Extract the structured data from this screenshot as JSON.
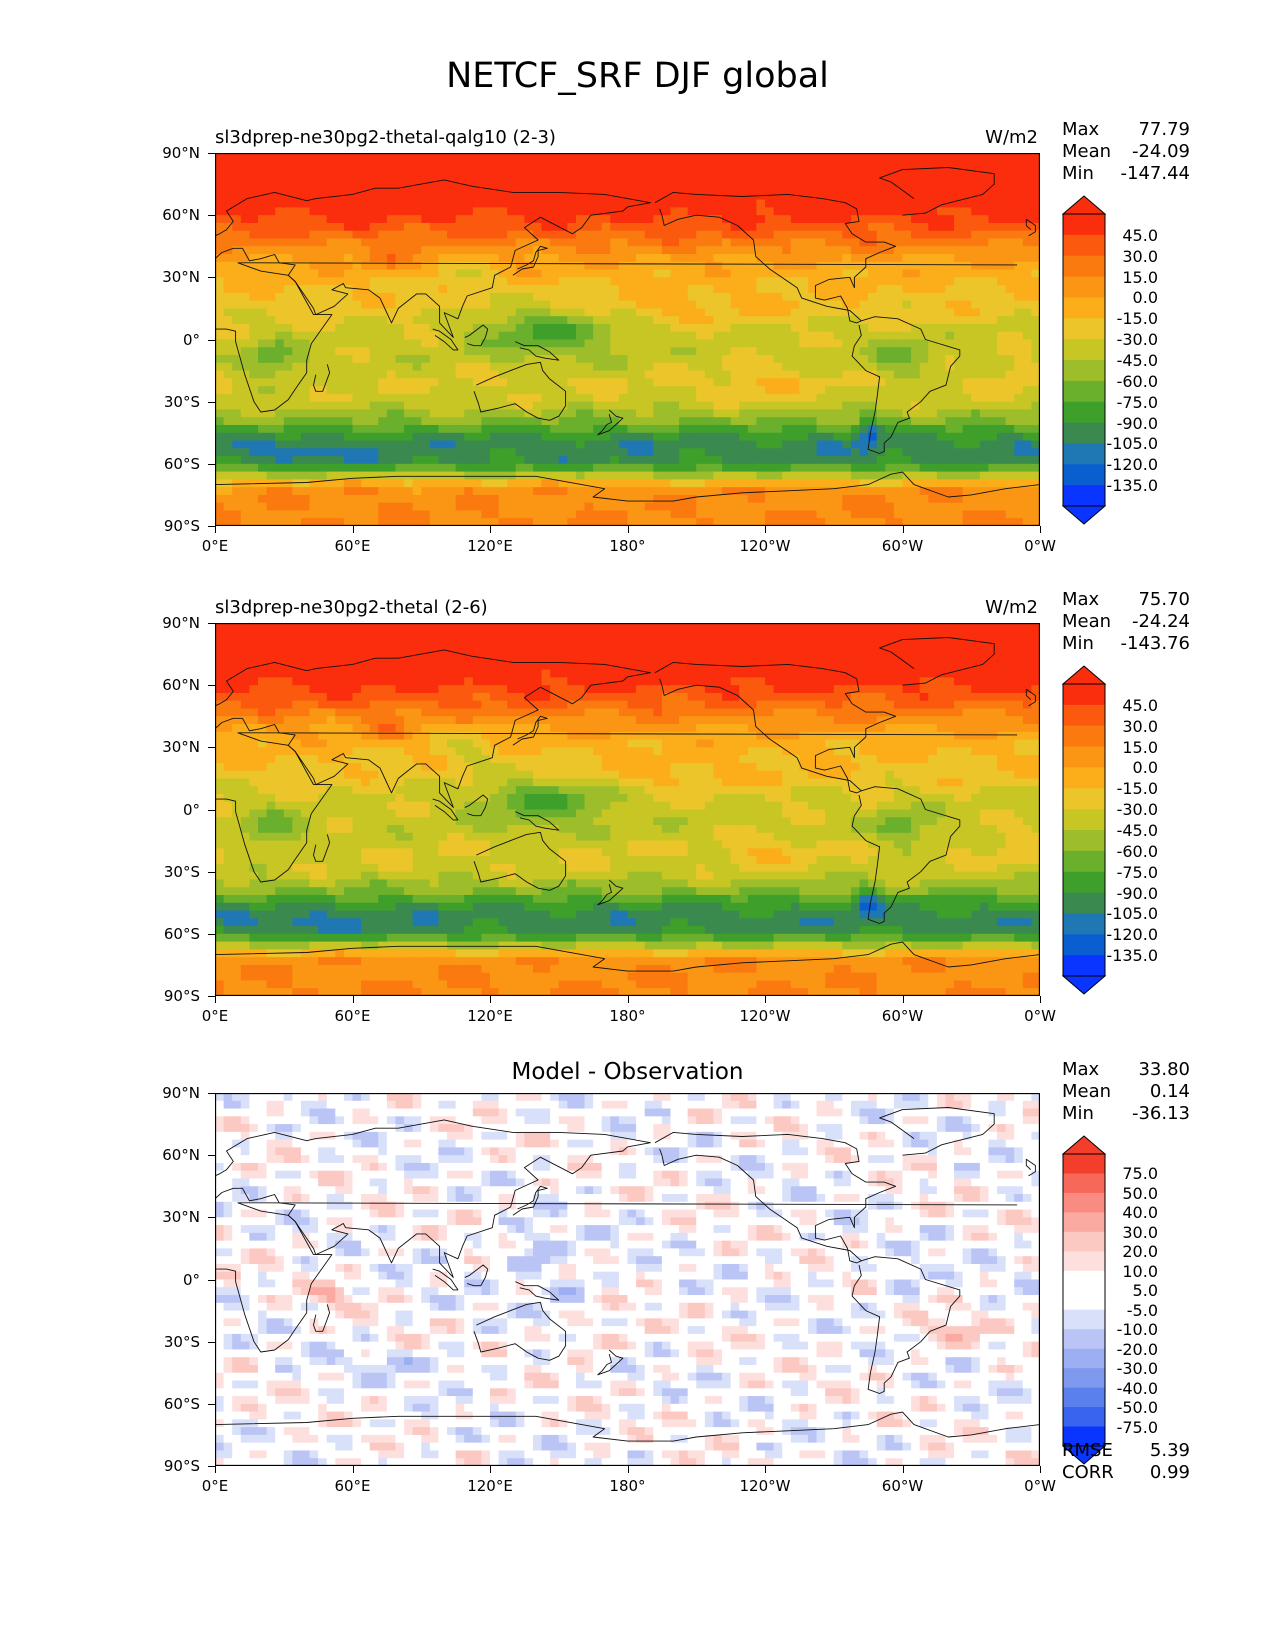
{
  "title": "NETCF_SRF DJF global",
  "colors": {
    "field": [
      "#0a34ff",
      "#0a5fd0",
      "#1f78b4",
      "#3a8a50",
      "#3ea02a",
      "#6ab02c",
      "#9dbe2a",
      "#c8c624",
      "#ecc52a",
      "#fcad1a",
      "#fb9614",
      "#fb7a10",
      "#fb5a0e",
      "#fa2d0c"
    ],
    "diff": [
      "#0a34ff",
      "#3864ee",
      "#5a80ee",
      "#7f99ef",
      "#9daef2",
      "#bac5f5",
      "#d9e0fa",
      "#ffffff",
      "#ffffff",
      "#fde0de",
      "#fcc8c2",
      "#fbaaa2",
      "#f98b80",
      "#f7685a",
      "#f23e2a"
    ]
  },
  "chart_data": [
    {
      "type": "heatmap",
      "panel": "test",
      "title_left": "sl3dprep-ne30pg2-thetal-qalg10 (2-3)",
      "units": "W/m2",
      "stats": {
        "max_label": "Max",
        "max": "77.79",
        "mean_label": "Mean",
        "mean": "-24.09",
        "min_label": "Min",
        "min": "-147.44"
      },
      "x_ticks": [
        "0°E",
        "60°E",
        "120°E",
        "180°",
        "120°W",
        "60°W",
        "0°W"
      ],
      "y_ticks": [
        "90°N",
        "60°N",
        "30°N",
        "0°",
        "30°S",
        "60°S",
        "90°S"
      ],
      "colorbar_ticks": [
        "45.0",
        "30.0",
        "15.0",
        "0.0",
        "-15.0",
        "-30.0",
        "-45.0",
        "-60.0",
        "-75.0",
        "-90.0",
        "-105.0",
        "-120.0",
        "-135.0"
      ],
      "colorbar_extend": "both"
    },
    {
      "type": "heatmap",
      "panel": "reference",
      "title_left": "sl3dprep-ne30pg2-thetal (2-6)",
      "units": "W/m2",
      "stats": {
        "max_label": "Max",
        "max": "75.70",
        "mean_label": "Mean",
        "mean": "-24.24",
        "min_label": "Min",
        "min": "-143.76"
      },
      "x_ticks": [
        "0°E",
        "60°E",
        "120°E",
        "180°",
        "120°W",
        "60°W",
        "0°W"
      ],
      "y_ticks": [
        "90°N",
        "60°N",
        "30°N",
        "0°",
        "30°S",
        "60°S",
        "90°S"
      ],
      "colorbar_ticks": [
        "45.0",
        "30.0",
        "15.0",
        "0.0",
        "-15.0",
        "-30.0",
        "-45.0",
        "-60.0",
        "-75.0",
        "-90.0",
        "-105.0",
        "-120.0",
        "-135.0"
      ],
      "colorbar_extend": "both"
    },
    {
      "type": "heatmap",
      "panel": "difference",
      "title_center": "Model - Observation",
      "stats": {
        "max_label": "Max",
        "max": "33.80",
        "mean_label": "Mean",
        "mean": "0.14",
        "min_label": "Min",
        "min": "-36.13"
      },
      "x_ticks": [
        "0°E",
        "60°E",
        "120°E",
        "180°",
        "120°W",
        "60°W",
        "0°W"
      ],
      "y_ticks": [
        "90°N",
        "60°N",
        "30°N",
        "0°",
        "30°S",
        "60°S",
        "90°S"
      ],
      "colorbar_ticks": [
        "75.0",
        "50.0",
        "40.0",
        "30.0",
        "20.0",
        "10.0",
        "5.0",
        "-5.0",
        "-10.0",
        "-20.0",
        "-30.0",
        "-40.0",
        "-50.0",
        "-75.0"
      ],
      "colorbar_extend": "both",
      "metrics": {
        "rmse_label": "RMSE",
        "rmse": "5.39",
        "corr_label": "CORR",
        "corr": "0.99"
      }
    }
  ]
}
